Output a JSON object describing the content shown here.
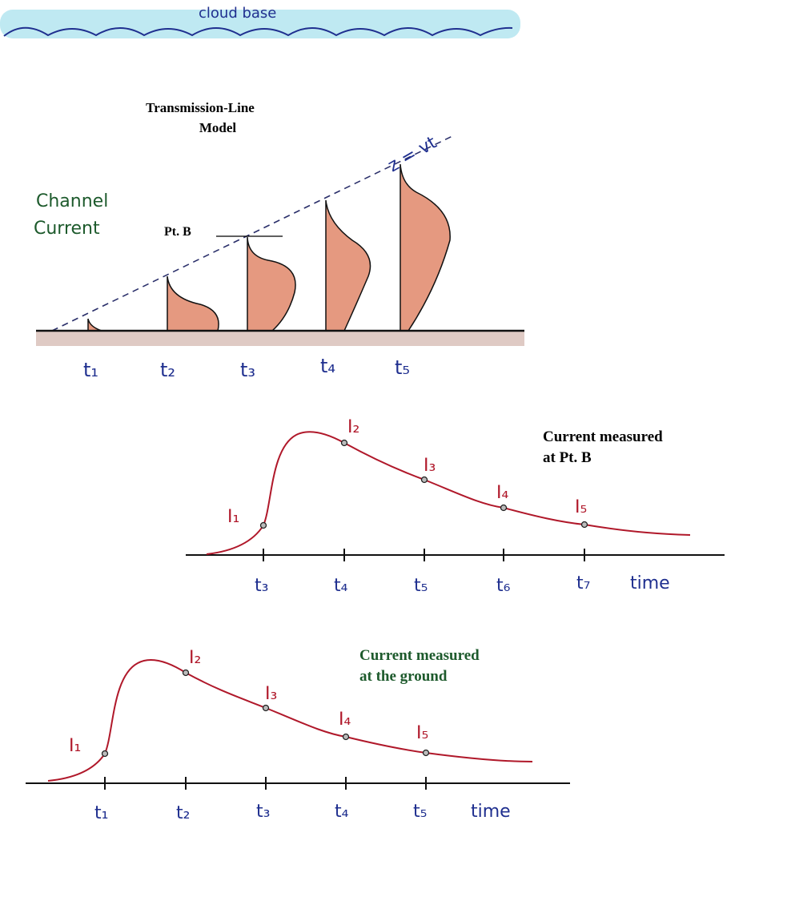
{
  "cloud": {
    "label": "cloud base"
  },
  "model": {
    "title_line1": "Transmission-Line",
    "title_line2": "Model",
    "side_label_line1": "Channel",
    "side_label_line2": "Current",
    "front_label": "z = vt",
    "point_label": "Pt. B",
    "time_labels": [
      "t₁",
      "t₂",
      "t₃",
      "t₄",
      "t₅"
    ]
  },
  "graph_pt_b": {
    "caption_line1": "Current measured",
    "caption_line2": "at Pt. B",
    "tick_labels": [
      "t₃",
      "t₄",
      "t₅",
      "t₆",
      "t₇"
    ],
    "axis_label": "time",
    "point_labels": [
      "I₁",
      "I₂",
      "I₃",
      "I₄",
      "I₅"
    ]
  },
  "graph_ground": {
    "caption_line1": "Current measured",
    "caption_line2": "at the ground",
    "tick_labels": [
      "t₁",
      "t₂",
      "t₃",
      "t₄",
      "t₅"
    ],
    "axis_label": "time",
    "point_labels": [
      "I₁",
      "I₂",
      "I₃",
      "I₄",
      "I₅"
    ]
  },
  "colors": {
    "cloud": "#7fd3e6",
    "ink_blue": "#1f2f8f",
    "channel_fill": "#e0876a",
    "curve_red": "#b0182a",
    "green_text": "#1d5a2c",
    "ground": "#8a5a4a"
  }
}
